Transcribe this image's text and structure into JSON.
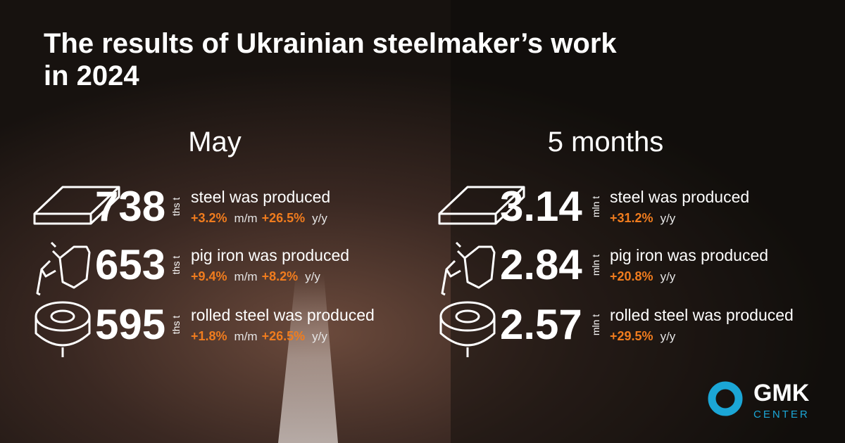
{
  "title": "The results of Ukrainian steelmaker’s work in 2024",
  "columns": [
    {
      "heading": "May",
      "unit": "ths t",
      "rows": [
        {
          "value": "738",
          "label": "steel was produced",
          "changes": [
            {
              "value": "+3.2%",
              "period": "m/m"
            },
            {
              "value": "+26.5%",
              "period": "y/y"
            }
          ]
        },
        {
          "value": "653",
          "label": "pig iron was produced",
          "changes": [
            {
              "value": "+9.4%",
              "period": "m/m"
            },
            {
              "value": "+8.2%",
              "period": "y/y"
            }
          ]
        },
        {
          "value": "595",
          "label": "rolled steel was produced",
          "changes": [
            {
              "value": "+1.8%",
              "period": "m/m"
            },
            {
              "value": "+26.5%",
              "period": "y/y"
            }
          ]
        }
      ]
    },
    {
      "heading": "5 months",
      "unit": "mln t",
      "rows": [
        {
          "value": "3.14",
          "label": "steel was produced",
          "changes": [
            {
              "value": "+31.2%",
              "period": "y/y"
            }
          ]
        },
        {
          "value": "2.84",
          "label": "pig iron was produced",
          "changes": [
            {
              "value": "+20.8%",
              "period": "y/y"
            }
          ]
        },
        {
          "value": "2.57",
          "label": "rolled steel was produced",
          "changes": [
            {
              "value": "+29.5%",
              "period": "y/y"
            }
          ]
        }
      ]
    }
  ],
  "logo": {
    "name": "GMK",
    "sub": "CENTER"
  }
}
